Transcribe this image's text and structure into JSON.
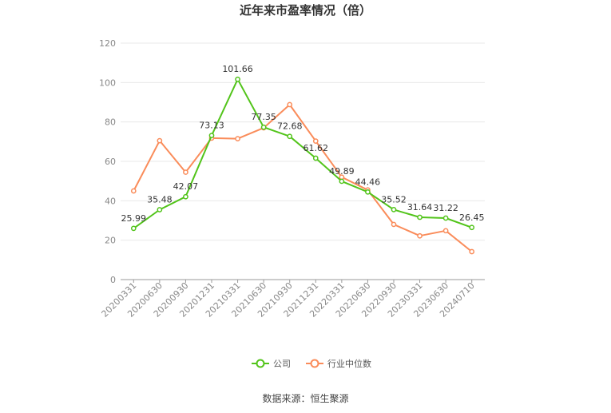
{
  "chart_data": {
    "type": "line",
    "title": "近年来市盈率情况（倍）",
    "categories": [
      "20200331",
      "20200630",
      "20200930",
      "20201231",
      "20210331",
      "20210630",
      "20210930",
      "20211231",
      "20220331",
      "20220630",
      "20220930",
      "20230331",
      "20230630",
      "20240710"
    ],
    "ylim": [
      0,
      120
    ],
    "yticks": [
      0,
      20,
      40,
      60,
      80,
      100,
      120
    ],
    "grid": true,
    "legend_position": "bottom",
    "series": [
      {
        "name": "公司",
        "color": "#52c41a",
        "show_labels": true,
        "values": [
          25.99,
          35.48,
          42.07,
          73.13,
          101.66,
          77.35,
          72.68,
          61.62,
          49.89,
          44.46,
          35.52,
          31.64,
          31.22,
          26.45
        ]
      },
      {
        "name": "行业中位数",
        "color": "#fa8c5a",
        "show_labels": false,
        "values": [
          45,
          70.5,
          54.5,
          71.8,
          71.5,
          77,
          88.8,
          70.3,
          52,
          45.5,
          28,
          22.2,
          24.8,
          14.2
        ]
      }
    ]
  },
  "source": "数据来源：恒生聚源"
}
